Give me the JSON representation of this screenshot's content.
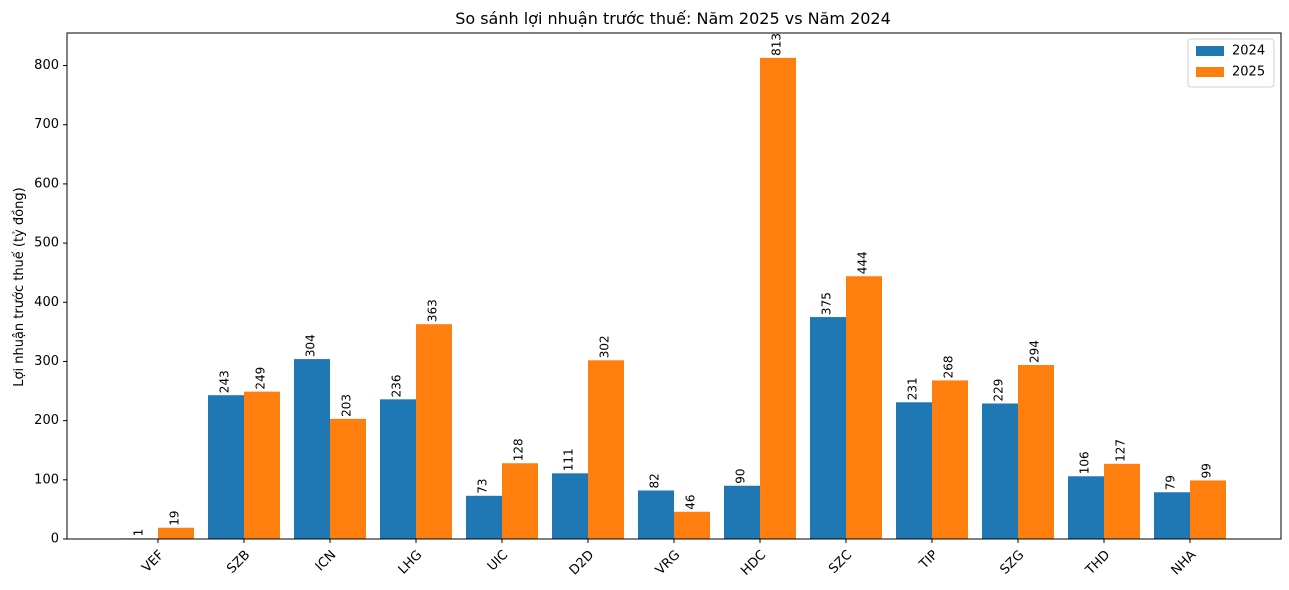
{
  "chart_data": {
    "type": "bar",
    "title": "So sánh lợi nhuận trước thuế: Năm 2025 vs Năm 2024",
    "xlabel": "",
    "ylabel": "Lợi nhuận trước thuế (tỷ đồng)",
    "categories": [
      "VEF",
      "SZB",
      "ICN",
      "LHG",
      "UIC",
      "D2D",
      "VRG",
      "HDC",
      "SZC",
      "TIP",
      "SZG",
      "THD",
      "NHA"
    ],
    "series": [
      {
        "name": "2024",
        "color": "#1f77b4",
        "values": [
          1,
          243,
          304,
          236,
          73,
          111,
          82,
          90,
          375,
          231,
          229,
          106,
          79
        ]
      },
      {
        "name": "2025",
        "color": "#ff7f0e",
        "values": [
          19,
          249,
          203,
          363,
          128,
          302,
          46,
          813,
          444,
          268,
          294,
          127,
          99
        ]
      }
    ],
    "ylim": [
      0,
      855
    ],
    "yticks": [
      0,
      100,
      200,
      300,
      400,
      500,
      600,
      700,
      800
    ],
    "legend_position": "top-right",
    "grid": false,
    "x_tick_rotation": "45°"
  }
}
